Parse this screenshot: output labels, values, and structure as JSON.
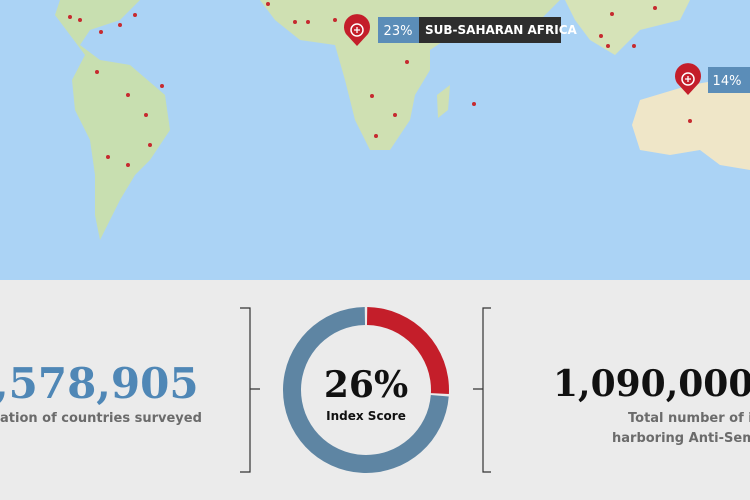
{
  "map": {
    "markers": [
      {
        "percent": "23%",
        "region": "SUB-SAHARAN AFRICA"
      },
      {
        "percent": "14%"
      }
    ]
  },
  "stats": {
    "left": {
      "number": ",578,905",
      "caption": "ation of countries surveyed"
    },
    "center": {
      "score": {
        "value": 26,
        "label": "26%"
      },
      "caption": "Index Score"
    },
    "right": {
      "number": "1,090,000",
      "caption_lines": [
        "Total number of indiv",
        "harboring Anti-Semitic a"
      ]
    }
  }
}
